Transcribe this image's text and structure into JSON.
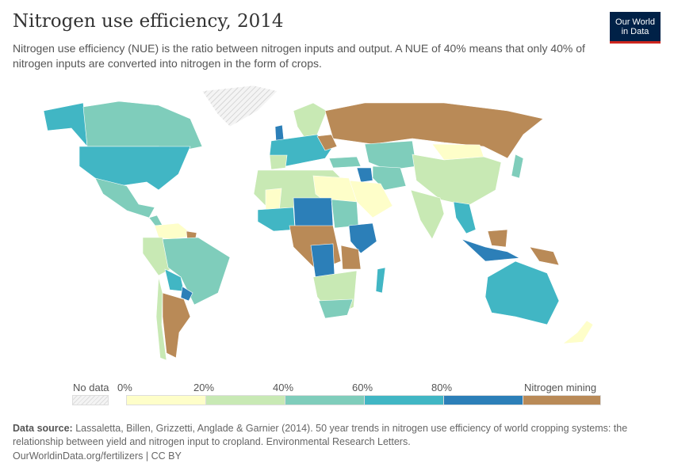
{
  "header": {
    "title": "Nitrogen use efficiency, 2014",
    "subtitle": "Nitrogen use efficiency (NUE) is the ratio between nitrogen inputs and output. A NUE of 40% means that only 40% of nitrogen inputs are converted into nitrogen in the form of crops.",
    "logo_line1": "Our World",
    "logo_line2": "in Data"
  },
  "legend": {
    "no_data_label": "No data",
    "ticks": [
      "0%",
      "20%",
      "40%",
      "60%",
      "80%"
    ],
    "mining_label": "Nitrogen mining",
    "bins": [
      {
        "range": "0-20%",
        "color": "#fefec9"
      },
      {
        "range": "20-40%",
        "color": "#c8e9b4"
      },
      {
        "range": "40-60%",
        "color": "#7fcdbb"
      },
      {
        "range": "60-80%",
        "color": "#41b6c4"
      },
      {
        "range": "80-100%",
        "color": "#2c7fb8"
      },
      {
        "range": "Nitrogen mining",
        "color": "#b98a57"
      }
    ],
    "no_data_style": "hatched grey"
  },
  "footer": {
    "source_label": "Data source:",
    "source_text": "Lassaletta, Billen, Grizzetti, Anglade & Garnier (2014). 50 year trends in nitrogen use efficiency of world cropping systems: the relationship between yield and nitrogen input to cropland. Environmental Research Letters.",
    "url": "OurWorldinData.org/fertilizers | CC BY"
  }
}
